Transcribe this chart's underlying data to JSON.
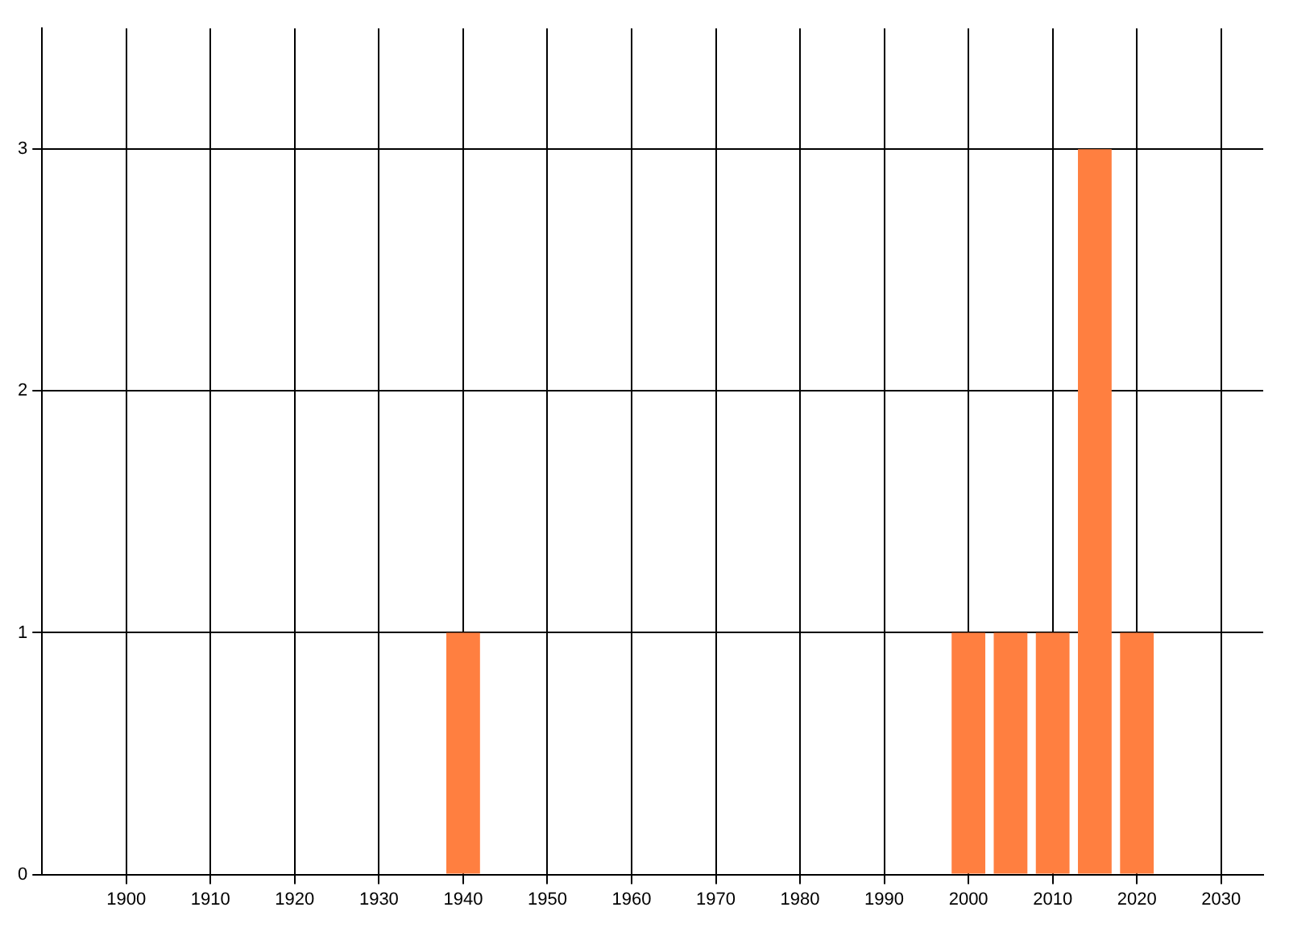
{
  "chart_data": {
    "type": "bar",
    "x": [
      1940,
      2000,
      2005,
      2010,
      2015,
      2020
    ],
    "values": [
      1,
      1,
      1,
      1,
      3,
      1
    ],
    "color": "#ff7f40",
    "xlim": [
      1890,
      2035
    ],
    "xticks": [
      1900,
      1910,
      1920,
      1930,
      1940,
      1950,
      1960,
      1970,
      1980,
      1990,
      2000,
      2010,
      2020,
      2030
    ],
    "ylim": [
      0,
      3.5
    ],
    "yticks": [
      0,
      1,
      2,
      3
    ],
    "grid": true
  }
}
